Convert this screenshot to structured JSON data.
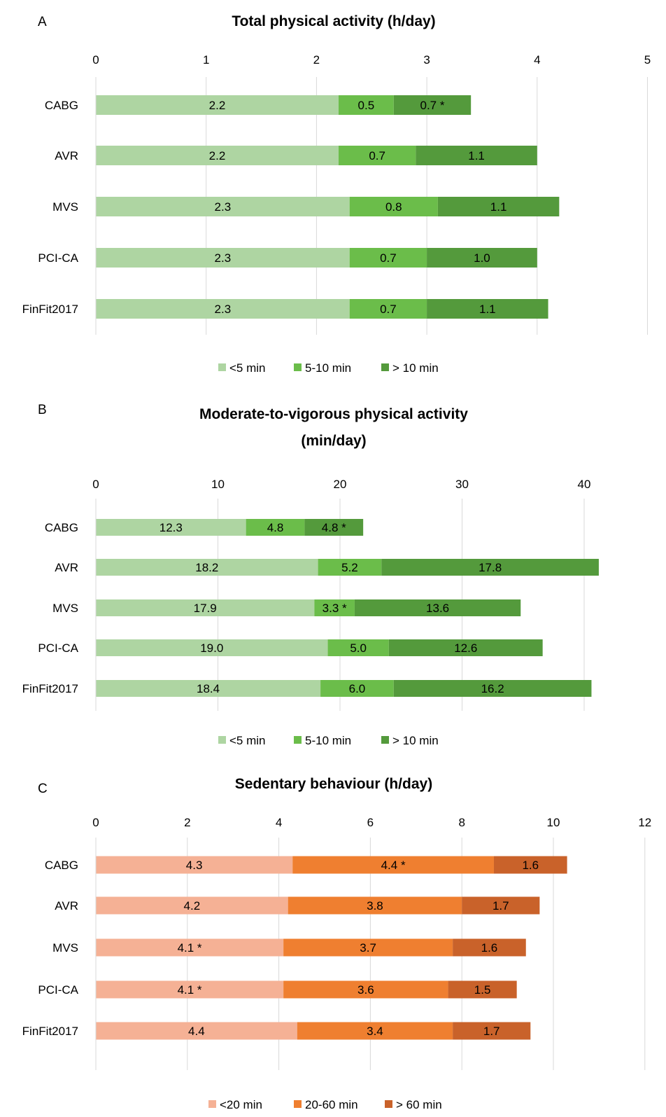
{
  "chart_data": [
    {
      "type": "bar",
      "orientation": "horizontal",
      "stacked": true,
      "panel": "A",
      "title": "Total physical activity (h/day)",
      "title_lines": [
        "Total physical activity (h/day)"
      ],
      "categories": [
        "CABG",
        "AVR",
        "MVS",
        "PCI-CA",
        "FinFit2017"
      ],
      "series": [
        {
          "name": "<5 min",
          "values": [
            2.2,
            2.2,
            2.3,
            2.3,
            2.3
          ],
          "labels": [
            "2.2",
            "2.2",
            "2.3",
            "2.3",
            "2.3"
          ],
          "color": "#aed5a2"
        },
        {
          "name": "5-10 min",
          "values": [
            0.5,
            0.7,
            0.8,
            0.7,
            0.7
          ],
          "labels": [
            "0.5",
            "0.7",
            "0.8",
            "0.7",
            "0.7"
          ],
          "color": "#6bbd4a"
        },
        {
          "name": "> 10 min",
          "values": [
            0.7,
            1.1,
            1.1,
            1.0,
            1.1
          ],
          "labels": [
            "0.7 *",
            "1.1",
            "1.1",
            "1.0",
            "1.1"
          ],
          "color": "#549a3c"
        }
      ],
      "xlim": [
        0,
        5
      ],
      "ticks": [
        0,
        1,
        2,
        3,
        4,
        5
      ],
      "tick_labels": [
        "0",
        "1",
        "2",
        "3",
        "4",
        "5"
      ],
      "axis_position": "top",
      "grid": true,
      "legend_position": "bottom"
    },
    {
      "type": "bar",
      "orientation": "horizontal",
      "stacked": true,
      "panel": "B",
      "title": "Moderate-to-vigorous physical activity (min/day)",
      "title_lines": [
        "Moderate-to-vigorous physical activity",
        "(min/day)"
      ],
      "categories": [
        "CABG",
        "AVR",
        "MVS",
        "PCI-CA",
        "FinFit2017"
      ],
      "series": [
        {
          "name": "<5 min",
          "values": [
            12.3,
            18.2,
            17.9,
            19.0,
            18.4
          ],
          "labels": [
            "12.3",
            "18.2",
            "17.9",
            "19.0",
            "18.4"
          ],
          "color": "#aed5a2"
        },
        {
          "name": "5-10 min",
          "values": [
            4.8,
            5.2,
            3.3,
            5.0,
            6.0
          ],
          "labels": [
            "4.8",
            "5.2",
            "3.3 *",
            "5.0",
            "6.0"
          ],
          "color": "#6bbd4a"
        },
        {
          "name": "> 10 min",
          "values": [
            4.8,
            17.8,
            13.6,
            12.6,
            16.2
          ],
          "labels": [
            "4.8 *",
            "17.8",
            "13.6",
            "12.6",
            "16.2"
          ],
          "color": "#549a3c"
        }
      ],
      "xlim": [
        0,
        43.6
      ],
      "ticks": [
        0,
        10,
        20,
        30,
        40
      ],
      "tick_labels": [
        "0",
        "10",
        "20",
        "30",
        "40"
      ],
      "axis_position": "top",
      "grid": true,
      "legend_position": "bottom"
    },
    {
      "type": "bar",
      "orientation": "horizontal",
      "stacked": true,
      "panel": "C",
      "title": "Sedentary behaviour (h/day)",
      "title_lines": [
        "Sedentary behaviour (h/day)"
      ],
      "categories": [
        "CABG",
        "AVR",
        "MVS",
        "PCI-CA",
        "FinFit2017"
      ],
      "series": [
        {
          "name": "<20 min",
          "values": [
            4.3,
            4.2,
            4.1,
            4.1,
            4.4
          ],
          "labels": [
            "4.3",
            "4.2",
            "4.1 *",
            "4.1 *",
            "4.4"
          ],
          "color": "#f5b195"
        },
        {
          "name": "20-60 min",
          "values": [
            4.4,
            3.8,
            3.7,
            3.6,
            3.4
          ],
          "labels": [
            "4.4 *",
            "3.8",
            "3.7",
            "3.6",
            "3.4"
          ],
          "color": "#ef7f30"
        },
        {
          "name": "> 60 min",
          "values": [
            1.6,
            1.7,
            1.6,
            1.5,
            1.7
          ],
          "labels": [
            "1.6",
            "1.7",
            "1.6",
            "1.5",
            "1.7"
          ],
          "color": "#c9622a"
        }
      ],
      "xlim": [
        0,
        12
      ],
      "ticks": [
        0,
        2,
        4,
        6,
        8,
        10,
        12
      ],
      "tick_labels": [
        "0",
        "2",
        "4",
        "6",
        "8",
        "10",
        "12"
      ],
      "axis_position": "top",
      "grid": true,
      "legend_position": "bottom"
    }
  ]
}
